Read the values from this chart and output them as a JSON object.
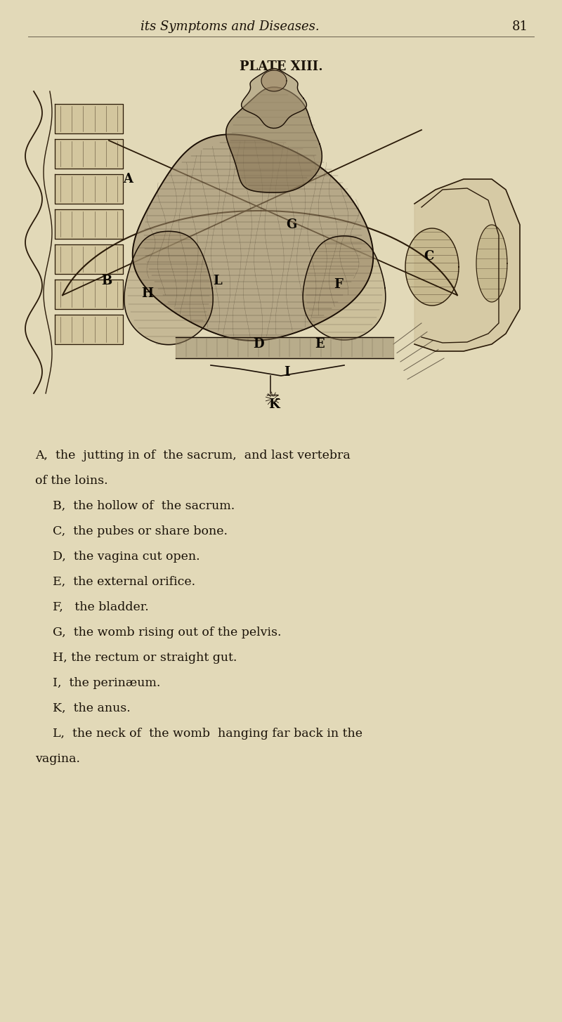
{
  "bg_color": "#e2d9b8",
  "text_color": "#1a1208",
  "header_italic": "its Symptoms and Diseases.",
  "header_page_num": "81",
  "plate_title": "PLATE XIII.",
  "lines": [
    [
      "A,  the  jutting in of  the sacrum,  and last vertebra",
      0.062,
      false
    ],
    [
      "of the loins.",
      0.062,
      false
    ],
    [
      "B,  the hollow of  the sacrum.",
      0.095,
      false
    ],
    [
      "C,  the pubes or share bone.",
      0.095,
      false
    ],
    [
      "D,  the vagina cut open.",
      0.095,
      false
    ],
    [
      "E,  the external orifice.",
      0.095,
      false
    ],
    [
      "F,   the bladder.",
      0.095,
      false
    ],
    [
      "G,  the womb rising out of the pelvis.",
      0.095,
      false
    ],
    [
      "H, the rectum or straight gut.",
      0.095,
      false
    ],
    [
      "I,  the perinæum.",
      0.095,
      false
    ],
    [
      "K,  the anus.",
      0.095,
      false
    ],
    [
      "L,  the neck of  the womb  hanging far back in the",
      0.095,
      false
    ],
    [
      "vagina.",
      0.062,
      false
    ]
  ],
  "fig_width": 8.0,
  "fig_height": 14.55,
  "dpi": 100
}
